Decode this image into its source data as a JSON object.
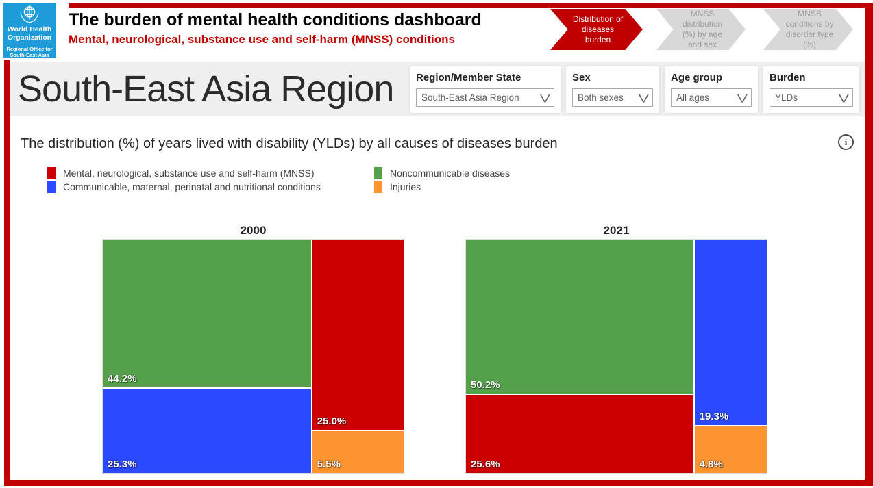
{
  "header": {
    "logo": {
      "org_line1": "World Health",
      "org_line2": "Organization",
      "office_line1": "Regional Office for",
      "office_line2": "South-East Asia"
    },
    "title": "The burden of mental health conditions dashboard",
    "subtitle": "Mental, neurological, substance use and self-harm (MNSS) conditions",
    "nav_arrows": [
      {
        "label": "Distribution of diseases burden",
        "active": true
      },
      {
        "label": "MNSS distribution (%) by age and sex",
        "active": false
      },
      {
        "label": "MNSS conditions by disorder type (%)",
        "active": false
      }
    ]
  },
  "filters_bar": {
    "region_title": "South-East Asia Region",
    "filters": [
      {
        "label": "Region/Member State",
        "value": "South-East Asia Region"
      },
      {
        "label": "Sex",
        "value": "Both sexes"
      },
      {
        "label": "Age group",
        "value": "All ages"
      },
      {
        "label": "Burden",
        "value": "YLDs"
      }
    ]
  },
  "chart_section": {
    "title": "The distribution (%) of years lived with disability (YLDs) by all causes of diseases burden"
  },
  "legend": {
    "items": [
      {
        "key": "mnss",
        "label": "Mental, neurological, substance use and self-harm (MNSS)"
      },
      {
        "key": "cmpn",
        "label": "Communicable, maternal, perinatal and nutritional conditions"
      },
      {
        "key": "ncd",
        "label": "Noncommunicable diseases"
      },
      {
        "key": "injuries",
        "label": "Injuries"
      }
    ]
  },
  "colors": {
    "mnss": "#CC0000",
    "cmpn": "#2B4AFF",
    "ncd": "#55A04A",
    "injuries": "#FB9431",
    "accent_red": "#C00000",
    "who_blue": "#1D9CD9",
    "inactive_gray": "#D8D8D8"
  },
  "chart_data": {
    "type": "treemap",
    "title": "The distribution (%) of years lived with disability (YLDs) by all causes of diseases burden",
    "unit": "%",
    "category_labels": {
      "mnss": "Mental, neurological, substance use and self-harm (MNSS)",
      "cmpn": "Communicable, maternal, perinatal and nutritional conditions",
      "ncd": "Noncommunicable diseases",
      "injuries": "Injuries"
    },
    "years": [
      {
        "year": "2000",
        "values": {
          "ncd": 44.2,
          "cmpn": 25.3,
          "mnss": 25.0,
          "injuries": 5.5
        },
        "labels": {
          "ncd": "44.2%",
          "cmpn": "25.3%",
          "mnss": "25.0%",
          "injuries": "5.5%"
        },
        "layout_columns": [
          [
            "ncd",
            "cmpn"
          ],
          [
            "mnss",
            "injuries"
          ]
        ]
      },
      {
        "year": "2021",
        "values": {
          "ncd": 50.2,
          "mnss": 25.6,
          "cmpn": 19.3,
          "injuries": 4.8
        },
        "labels": {
          "ncd": "50.2%",
          "mnss": "25.6%",
          "cmpn": "19.3%",
          "injuries": "4.8%"
        },
        "layout_columns": [
          [
            "ncd",
            "mnss"
          ],
          [
            "cmpn",
            "injuries"
          ]
        ]
      }
    ]
  }
}
